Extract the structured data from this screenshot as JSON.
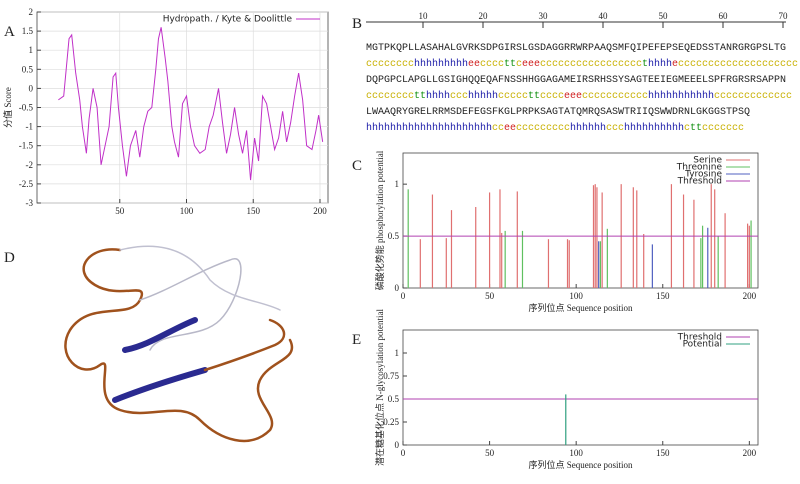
{
  "panel_labels": [
    "A",
    "B",
    "C",
    "D",
    "E"
  ],
  "chart_data": [
    {
      "type": "line",
      "legend": "top-right",
      "grid": true,
      "ylabel": "分值 Score",
      "xlim": [
        -12,
        206
      ],
      "xticks": [
        50,
        100,
        150,
        200
      ],
      "ylim": [
        -3,
        2
      ],
      "yticks": [
        2,
        1.5,
        1,
        0.5,
        0,
        -0.5,
        -1,
        -1.5,
        -2,
        -2.5,
        -3
      ],
      "series": [
        {
          "name": "Hydropath. / Kyte & Doolittle",
          "color": "#c030c8",
          "x": [
            4,
            8,
            12,
            14,
            17,
            20,
            22,
            25,
            27,
            30,
            33,
            36,
            39,
            42,
            45,
            47,
            49,
            52,
            55,
            58,
            62,
            65,
            68,
            71,
            74,
            77,
            79,
            81,
            84,
            86,
            89,
            91,
            94,
            97,
            100,
            103,
            106,
            110,
            114,
            117,
            120,
            124,
            127,
            130,
            133,
            136,
            139,
            142,
            145,
            148,
            151,
            154,
            157,
            160,
            163,
            166,
            169,
            172,
            175,
            178,
            181,
            184,
            187,
            190,
            194,
            197,
            199,
            202
          ],
          "values": [
            -0.3,
            -0.2,
            1.3,
            1.4,
            0.4,
            -0.3,
            -1,
            -1.7,
            -0.8,
            0,
            -0.5,
            -2,
            -1.5,
            -1,
            0.3,
            0.4,
            -0.5,
            -1.5,
            -2.3,
            -1.5,
            -1.1,
            -1.8,
            -1,
            -0.6,
            -0.5,
            0.5,
            1.3,
            1.6,
            0.8,
            0.2,
            -1,
            -1.4,
            -1.8,
            -0.4,
            -0.2,
            -1,
            -1.5,
            -1.7,
            -1.6,
            -1,
            -0.7,
            0,
            -0.9,
            -1.7,
            -1.2,
            -0.5,
            -1.2,
            -1.7,
            -1.1,
            -2.4,
            -1.3,
            -1.9,
            -0.2,
            -0.4,
            -1,
            -1.6,
            -1.3,
            -0.6,
            -1.4,
            -0.9,
            -0.2,
            0.4,
            -0.3,
            -1.5,
            -1.6,
            -1.1,
            -0.7,
            -1.4
          ]
        }
      ]
    },
    {
      "type": "bar",
      "legend": "top-right",
      "grid": false,
      "xlabel": "序列位点 Sequence position",
      "ylabel": "磷酸化势能 phosphorylation potential",
      "xlim": [
        0,
        205
      ],
      "xticks": [
        0,
        50,
        100,
        150,
        200
      ],
      "ylim": [
        0,
        1.3
      ],
      "yticks": [
        0,
        0.5,
        1
      ],
      "series": [
        {
          "name": "Serine",
          "color": "#e07070",
          "x": [
            10,
            17,
            25,
            28,
            42,
            50,
            56,
            57,
            66,
            84,
            95,
            96,
            110,
            111,
            112,
            115,
            126,
            133,
            135,
            139,
            155,
            162,
            168,
            178,
            180,
            186,
            199,
            200
          ],
          "values": [
            0.47,
            0.9,
            0.48,
            0.75,
            0.78,
            0.92,
            0.95,
            0.53,
            0.93,
            0.47,
            0.47,
            0.46,
            0.99,
            1,
            0.97,
            0.92,
            1,
            0.97,
            0.94,
            0.52,
            1,
            0.9,
            0.85,
            1,
            0.95,
            0.72,
            0.62,
            0.6
          ]
        },
        {
          "name": "Threonine",
          "color": "#60c060",
          "x": [
            3,
            59,
            69,
            114,
            118,
            172,
            173,
            182,
            201
          ],
          "values": [
            0.95,
            0.55,
            0.55,
            0.45,
            0.57,
            0.48,
            0.6,
            0.5,
            0.65
          ]
        },
        {
          "name": "Tyrosine",
          "color": "#5060c0",
          "x": [
            113,
            144,
            176
          ],
          "values": [
            0.45,
            0.42,
            0.58
          ]
        },
        {
          "name": "Threshold",
          "color": "#b040b0",
          "values": [
            0.5
          ]
        }
      ]
    },
    {
      "type": "bar",
      "legend": "top-right",
      "grid": false,
      "xlabel": "序列位点 Sequence position",
      "ylabel": "潜在糖基化位点 N-glycosylation potential",
      "xlim": [
        0,
        205
      ],
      "xticks": [
        0,
        50,
        100,
        150,
        200
      ],
      "ylim": [
        0,
        1.25
      ],
      "yticks": [
        0,
        0.25,
        0.5,
        0.75,
        1
      ],
      "series": [
        {
          "name": "Threshold",
          "color": "#b040b0",
          "values": [
            0.5
          ]
        },
        {
          "name": "Potential",
          "color": "#30a080",
          "x": [
            94
          ],
          "values": [
            0.55
          ]
        }
      ]
    }
  ],
  "sequence": {
    "ruler_ticks": [
      10,
      20,
      30,
      40,
      50,
      60,
      70
    ],
    "lines": [
      "MGTPKQPLLASAHALGVRKSDPGIRSLGSDAGGRRWRPAAQSMFQIPEFEPSEQEDSSTANRGRGPSLTG",
      "cccccccchhhhhhhhheeccccttceeecccccccccccccccccthhhhecccccccccccccccccccc",
      "DQPGPCLAPGLLGSIGHQQEQAFNSSHHGGAGAMEIRSRHSSYSAGTEEIEGMEEELSPFRGRSRSAPPN",
      "cccccccctthhhhccchhhhhcccccttcccceeeccccccccccchhhhhhhhhhhccccccccccccc",
      "LWAAQRYGRELRRMSDEFEGSFKGLPRPKSAGTATQMRQSASWTRIIQSWWDRNLGKGGSTPSQ",
      "hhhhhhhhhhhhhhhhhhhhhcceeccccccccchhhhhhccchhhhhhhhhhcttccccccc"
    ]
  }
}
